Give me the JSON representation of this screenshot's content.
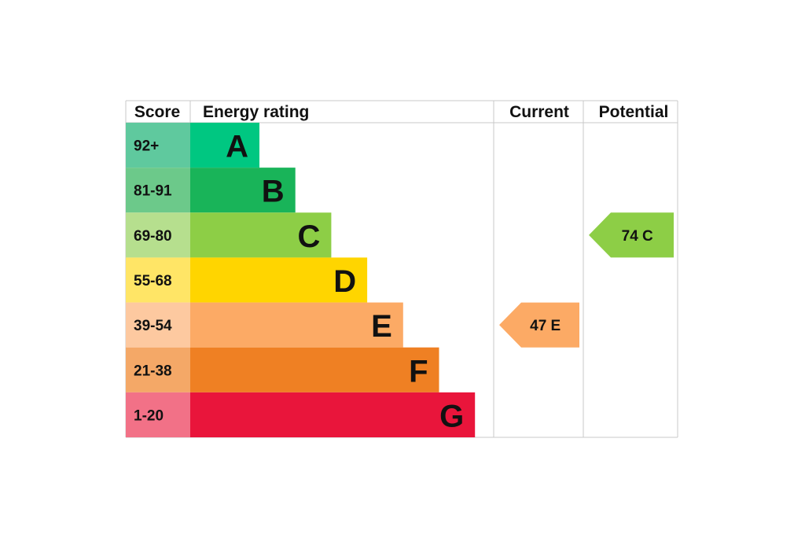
{
  "chart_data": {
    "type": "bar",
    "headers": {
      "score": "Score",
      "energy_rating": "Energy rating",
      "current": "Current",
      "potential": "Potential"
    },
    "bands": [
      {
        "letter": "A",
        "score": "92+",
        "color": "#00c781",
        "score_bg": "#5fc99e"
      },
      {
        "letter": "B",
        "score": "81-91",
        "color": "#19b459",
        "score_bg": "#6cc98a"
      },
      {
        "letter": "C",
        "score": "69-80",
        "color": "#8dce46",
        "score_bg": "#b6df8e"
      },
      {
        "letter": "D",
        "score": "55-68",
        "color": "#ffd500",
        "score_bg": "#ffe566"
      },
      {
        "letter": "E",
        "score": "39-54",
        "color": "#fcaa65",
        "score_bg": "#fdc9a0"
      },
      {
        "letter": "F",
        "score": "21-38",
        "color": "#ef8023",
        "score_bg": "#f4a867"
      },
      {
        "letter": "G",
        "score": "1-20",
        "color": "#e9153b",
        "score_bg": "#f27187"
      }
    ],
    "current": {
      "value": 47,
      "band": "E",
      "label": "47 E",
      "color": "#fcaa65"
    },
    "potential": {
      "value": 74,
      "band": "C",
      "label": "74 C",
      "color": "#8dce46"
    }
  }
}
